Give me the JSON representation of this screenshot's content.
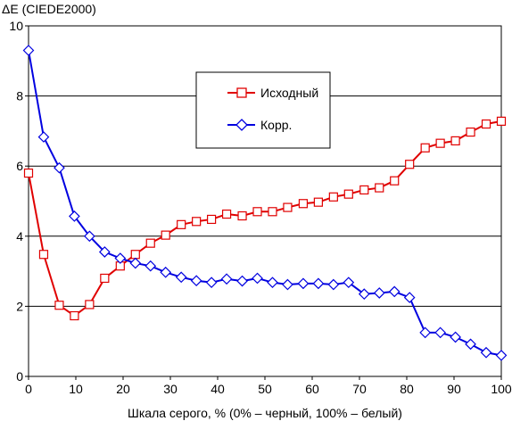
{
  "chart_data": {
    "type": "line",
    "title": "",
    "ylabel": "ΔE (CIEDE2000)",
    "xlabel": "Шкала серого, % (0% – черный, 100% – белый)",
    "xlim": [
      0,
      100
    ],
    "ylim": [
      0,
      10
    ],
    "xticks": [
      "0",
      "10",
      "20",
      "30",
      "40",
      "50",
      "60",
      "70",
      "80",
      "90",
      "100"
    ],
    "yticks": [
      "0",
      "2",
      "4",
      "6",
      "8",
      "10"
    ],
    "grid": "horizontal",
    "legend_position": "center",
    "x": [
      0,
      3.2,
      6.5,
      9.7,
      12.9,
      16.1,
      19.4,
      22.6,
      25.8,
      29.0,
      32.3,
      35.5,
      38.7,
      41.9,
      45.2,
      48.4,
      51.6,
      54.8,
      58.1,
      61.3,
      64.5,
      67.7,
      71.0,
      74.2,
      77.4,
      80.6,
      83.9,
      87.1,
      90.3,
      93.5,
      96.8,
      100
    ],
    "series": [
      {
        "name": "Исходный",
        "color": "#e00000",
        "marker": "square",
        "values": [
          5.8,
          3.48,
          2.03,
          1.73,
          2.05,
          2.8,
          3.15,
          3.48,
          3.8,
          4.03,
          4.33,
          4.42,
          4.48,
          4.63,
          4.58,
          4.7,
          4.7,
          4.82,
          4.93,
          4.97,
          5.12,
          5.2,
          5.32,
          5.38,
          5.58,
          6.05,
          6.52,
          6.65,
          6.72,
          6.97,
          7.2,
          7.28
        ]
      },
      {
        "name": "Корр.",
        "color": "#0000e0",
        "marker": "diamond",
        "values": [
          9.3,
          6.83,
          5.95,
          4.57,
          4.0,
          3.55,
          3.37,
          3.23,
          3.15,
          2.97,
          2.83,
          2.73,
          2.68,
          2.78,
          2.72,
          2.8,
          2.68,
          2.62,
          2.65,
          2.65,
          2.62,
          2.68,
          2.35,
          2.38,
          2.42,
          2.25,
          1.25,
          1.25,
          1.12,
          0.92,
          0.68,
          0.6
        ]
      }
    ]
  }
}
